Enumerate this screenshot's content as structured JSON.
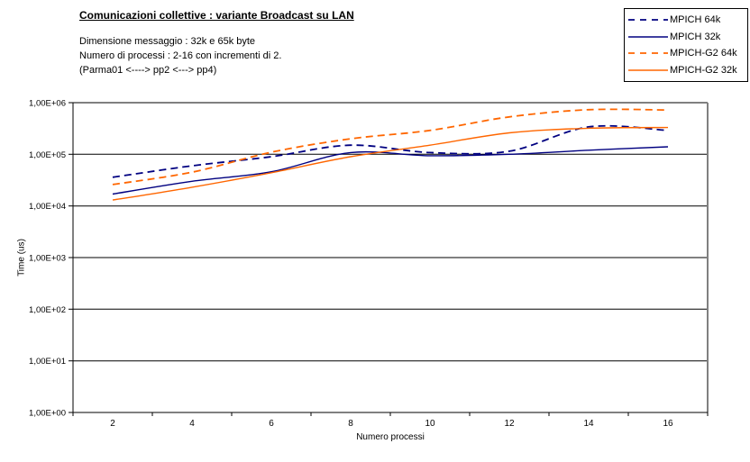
{
  "header": {
    "title": "Comunicazioni collettive : variante Broadcast su LAN",
    "subtitle_lines": [
      "Dimensione messaggio : 32k e 65k byte",
      "Numero di processi : 2-16 con incrementi di 2.",
      "(Parma01 <----> pp2 <---> pp4)"
    ]
  },
  "colors": {
    "navy": "#000080",
    "orange": "#FF6600",
    "plot_border_gray": "#808080",
    "gridline": "#000000"
  },
  "chart_data": {
    "type": "line",
    "x": [
      2,
      4,
      6,
      8,
      10,
      12,
      14,
      16
    ],
    "xlabel": "Numero processi",
    "ylabel": "Time (us)",
    "y_scale": "log10",
    "ylim": [
      1,
      1000000
    ],
    "y_tick_labels": [
      "1,00E+00",
      "1,00E+01",
      "1,00E+02",
      "1,00E+03",
      "1,00E+04",
      "1,00E+05",
      "1,00E+06"
    ],
    "grid": "horizontal-major",
    "legend_position": "top-right",
    "series": [
      {
        "name": "MPICH 64k",
        "color": "#000080",
        "style": "dashed",
        "values": [
          36000,
          60000,
          90000,
          150000,
          108000,
          115000,
          340000,
          290000
        ]
      },
      {
        "name": "MPICH 32k",
        "color": "#000080",
        "style": "solid",
        "values": [
          17000,
          30000,
          46000,
          108000,
          94000,
          100000,
          120000,
          140000
        ]
      },
      {
        "name": "MPICH-G2 64k",
        "color": "#FF6600",
        "style": "dashed",
        "values": [
          26000,
          45000,
          110000,
          200000,
          290000,
          530000,
          730000,
          720000
        ]
      },
      {
        "name": "MPICH-G2 32k",
        "color": "#FF6600",
        "style": "solid",
        "values": [
          13000,
          23000,
          44000,
          90000,
          150000,
          260000,
          320000,
          330000
        ]
      }
    ]
  }
}
